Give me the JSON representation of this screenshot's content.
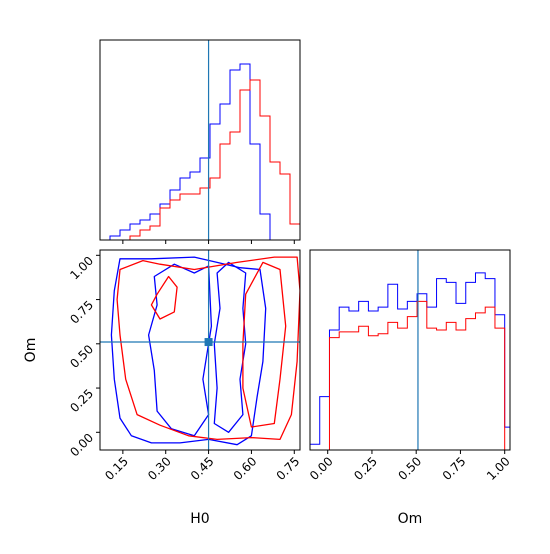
{
  "colors": {
    "series_a": "#0000ff",
    "series_b": "#ff0000",
    "truth": "#1f77b4",
    "axis": "#000000"
  },
  "chart_data": {
    "type": "corner",
    "parameters": [
      "H0",
      "Om"
    ],
    "truths": {
      "H0": 0.45,
      "Om": 0.51
    },
    "tick_labels": {
      "H0": [
        "0.15",
        "0.30",
        "0.45",
        "0.60",
        "0.75"
      ],
      "Om_bottom": [
        "0.00",
        "0.25",
        "0.50",
        "0.75",
        "1.00"
      ],
      "Om_left": [
        "0.00",
        "0.25",
        "0.50",
        "0.75",
        "1.00"
      ]
    },
    "axes": {
      "H0_range": [
        0.07,
        0.77
      ],
      "Om_range": [
        -0.1,
        1.03
      ],
      "xlabel_bottom_left": "H0",
      "xlabel_bottom_right": "Om",
      "ylabel_left": "Om"
    },
    "marginal_H0": {
      "bins_x": [
        0.07,
        0.105,
        0.14,
        0.175,
        0.21,
        0.245,
        0.28,
        0.315,
        0.35,
        0.385,
        0.42,
        0.455,
        0.49,
        0.525,
        0.56,
        0.595,
        0.63,
        0.665,
        0.7,
        0.735,
        0.77
      ],
      "series": [
        {
          "color_key": "series_a",
          "values": [
            0,
            0.02,
            0.05,
            0.08,
            0.1,
            0.13,
            0.18,
            0.25,
            0.31,
            0.34,
            0.41,
            0.58,
            0.68,
            0.85,
            0.88,
            0.48,
            0.13,
            0,
            0,
            0
          ]
        },
        {
          "color_key": "series_b",
          "values": [
            0,
            0,
            0,
            0.02,
            0.05,
            0.07,
            0.16,
            0.2,
            0.23,
            0.23,
            0.26,
            0.31,
            0.48,
            0.54,
            0.75,
            0.8,
            0.62,
            0.39,
            0.33,
            0.08
          ]
        }
      ]
    },
    "marginal_Om": {
      "bins_x": [
        -0.1,
        -0.045,
        0.01,
        0.065,
        0.12,
        0.175,
        0.23,
        0.285,
        0.34,
        0.395,
        0.45,
        0.505,
        0.56,
        0.615,
        0.67,
        0.725,
        0.78,
        0.835,
        0.89,
        0.945,
        1.0,
        1.03
      ],
      "series": [
        {
          "color_key": "series_a",
          "values": [
            0.03,
            0.28,
            0.63,
            0.75,
            0.73,
            0.78,
            0.73,
            0.75,
            0.87,
            0.74,
            0.78,
            0.82,
            0.75,
            0.9,
            0.88,
            0.77,
            0.88,
            0.93,
            0.9,
            0.71,
            0.12
          ]
        },
        {
          "color_key": "series_b",
          "values": [
            0,
            0,
            0.59,
            0.62,
            0.62,
            0.65,
            0.6,
            0.61,
            0.67,
            0.64,
            0.7,
            0.78,
            0.64,
            0.63,
            0.67,
            0.63,
            0.69,
            0.72,
            0.75,
            0.64,
            0
          ]
        }
      ]
    },
    "joint_contours": [
      {
        "color_key": "series_a",
        "level": 1,
        "points": [
          [
            0.14,
            0.98
          ],
          [
            0.25,
            0.98
          ],
          [
            0.4,
            0.99
          ],
          [
            0.48,
            0.96
          ],
          [
            0.56,
            0.93
          ],
          [
            0.63,
            0.92
          ],
          [
            0.65,
            0.7
          ],
          [
            0.64,
            0.4
          ],
          [
            0.62,
            0.2
          ],
          [
            0.6,
            -0.02
          ],
          [
            0.55,
            -0.07
          ],
          [
            0.45,
            -0.04
          ],
          [
            0.35,
            -0.06
          ],
          [
            0.25,
            -0.06
          ],
          [
            0.18,
            -0.02
          ],
          [
            0.14,
            0.08
          ],
          [
            0.12,
            0.3
          ],
          [
            0.11,
            0.55
          ],
          [
            0.12,
            0.8
          ]
        ]
      },
      {
        "color_key": "series_a",
        "level": 2,
        "points": [
          [
            0.26,
            0.88
          ],
          [
            0.33,
            0.95
          ],
          [
            0.4,
            0.9
          ],
          [
            0.45,
            0.94
          ],
          [
            0.46,
            0.6
          ],
          [
            0.43,
            0.3
          ],
          [
            0.45,
            0.1
          ],
          [
            0.4,
            -0.02
          ],
          [
            0.32,
            0.02
          ],
          [
            0.27,
            0.12
          ],
          [
            0.26,
            0.35
          ],
          [
            0.24,
            0.55
          ],
          [
            0.27,
            0.72
          ]
        ]
      },
      {
        "color_key": "series_a",
        "level": 2,
        "points": [
          [
            0.48,
            0.9
          ],
          [
            0.52,
            0.96
          ],
          [
            0.58,
            0.9
          ],
          [
            0.57,
            0.7
          ],
          [
            0.58,
            0.5
          ],
          [
            0.56,
            0.3
          ],
          [
            0.57,
            0.1
          ],
          [
            0.52,
            0.0
          ],
          [
            0.47,
            0.05
          ],
          [
            0.48,
            0.25
          ],
          [
            0.47,
            0.5
          ],
          [
            0.49,
            0.7
          ]
        ]
      },
      {
        "color_key": "series_b",
        "level": 1,
        "points": [
          [
            0.14,
            0.92
          ],
          [
            0.22,
            0.97
          ],
          [
            0.28,
            0.95
          ],
          [
            0.4,
            0.92
          ],
          [
            0.55,
            0.96
          ],
          [
            0.68,
            0.99
          ],
          [
            0.76,
            0.99
          ],
          [
            0.77,
            0.8
          ],
          [
            0.76,
            0.4
          ],
          [
            0.74,
            0.1
          ],
          [
            0.7,
            -0.04
          ],
          [
            0.6,
            -0.03
          ],
          [
            0.48,
            -0.04
          ],
          [
            0.38,
            -0.02
          ],
          [
            0.28,
            0.04
          ],
          [
            0.2,
            0.1
          ],
          [
            0.16,
            0.3
          ],
          [
            0.14,
            0.55
          ],
          [
            0.13,
            0.75
          ]
        ]
      },
      {
        "color_key": "series_b",
        "level": 2,
        "points": [
          [
            0.58,
            0.78
          ],
          [
            0.64,
            0.96
          ],
          [
            0.7,
            0.92
          ],
          [
            0.72,
            0.6
          ],
          [
            0.7,
            0.3
          ],
          [
            0.68,
            0.05
          ],
          [
            0.6,
            0.03
          ],
          [
            0.57,
            0.25
          ],
          [
            0.57,
            0.5
          ]
        ]
      },
      {
        "color_key": "series_b",
        "level": 2,
        "points": [
          [
            0.27,
            0.78
          ],
          [
            0.31,
            0.88
          ],
          [
            0.34,
            0.82
          ],
          [
            0.33,
            0.68
          ],
          [
            0.28,
            0.64
          ],
          [
            0.25,
            0.72
          ]
        ]
      }
    ]
  }
}
